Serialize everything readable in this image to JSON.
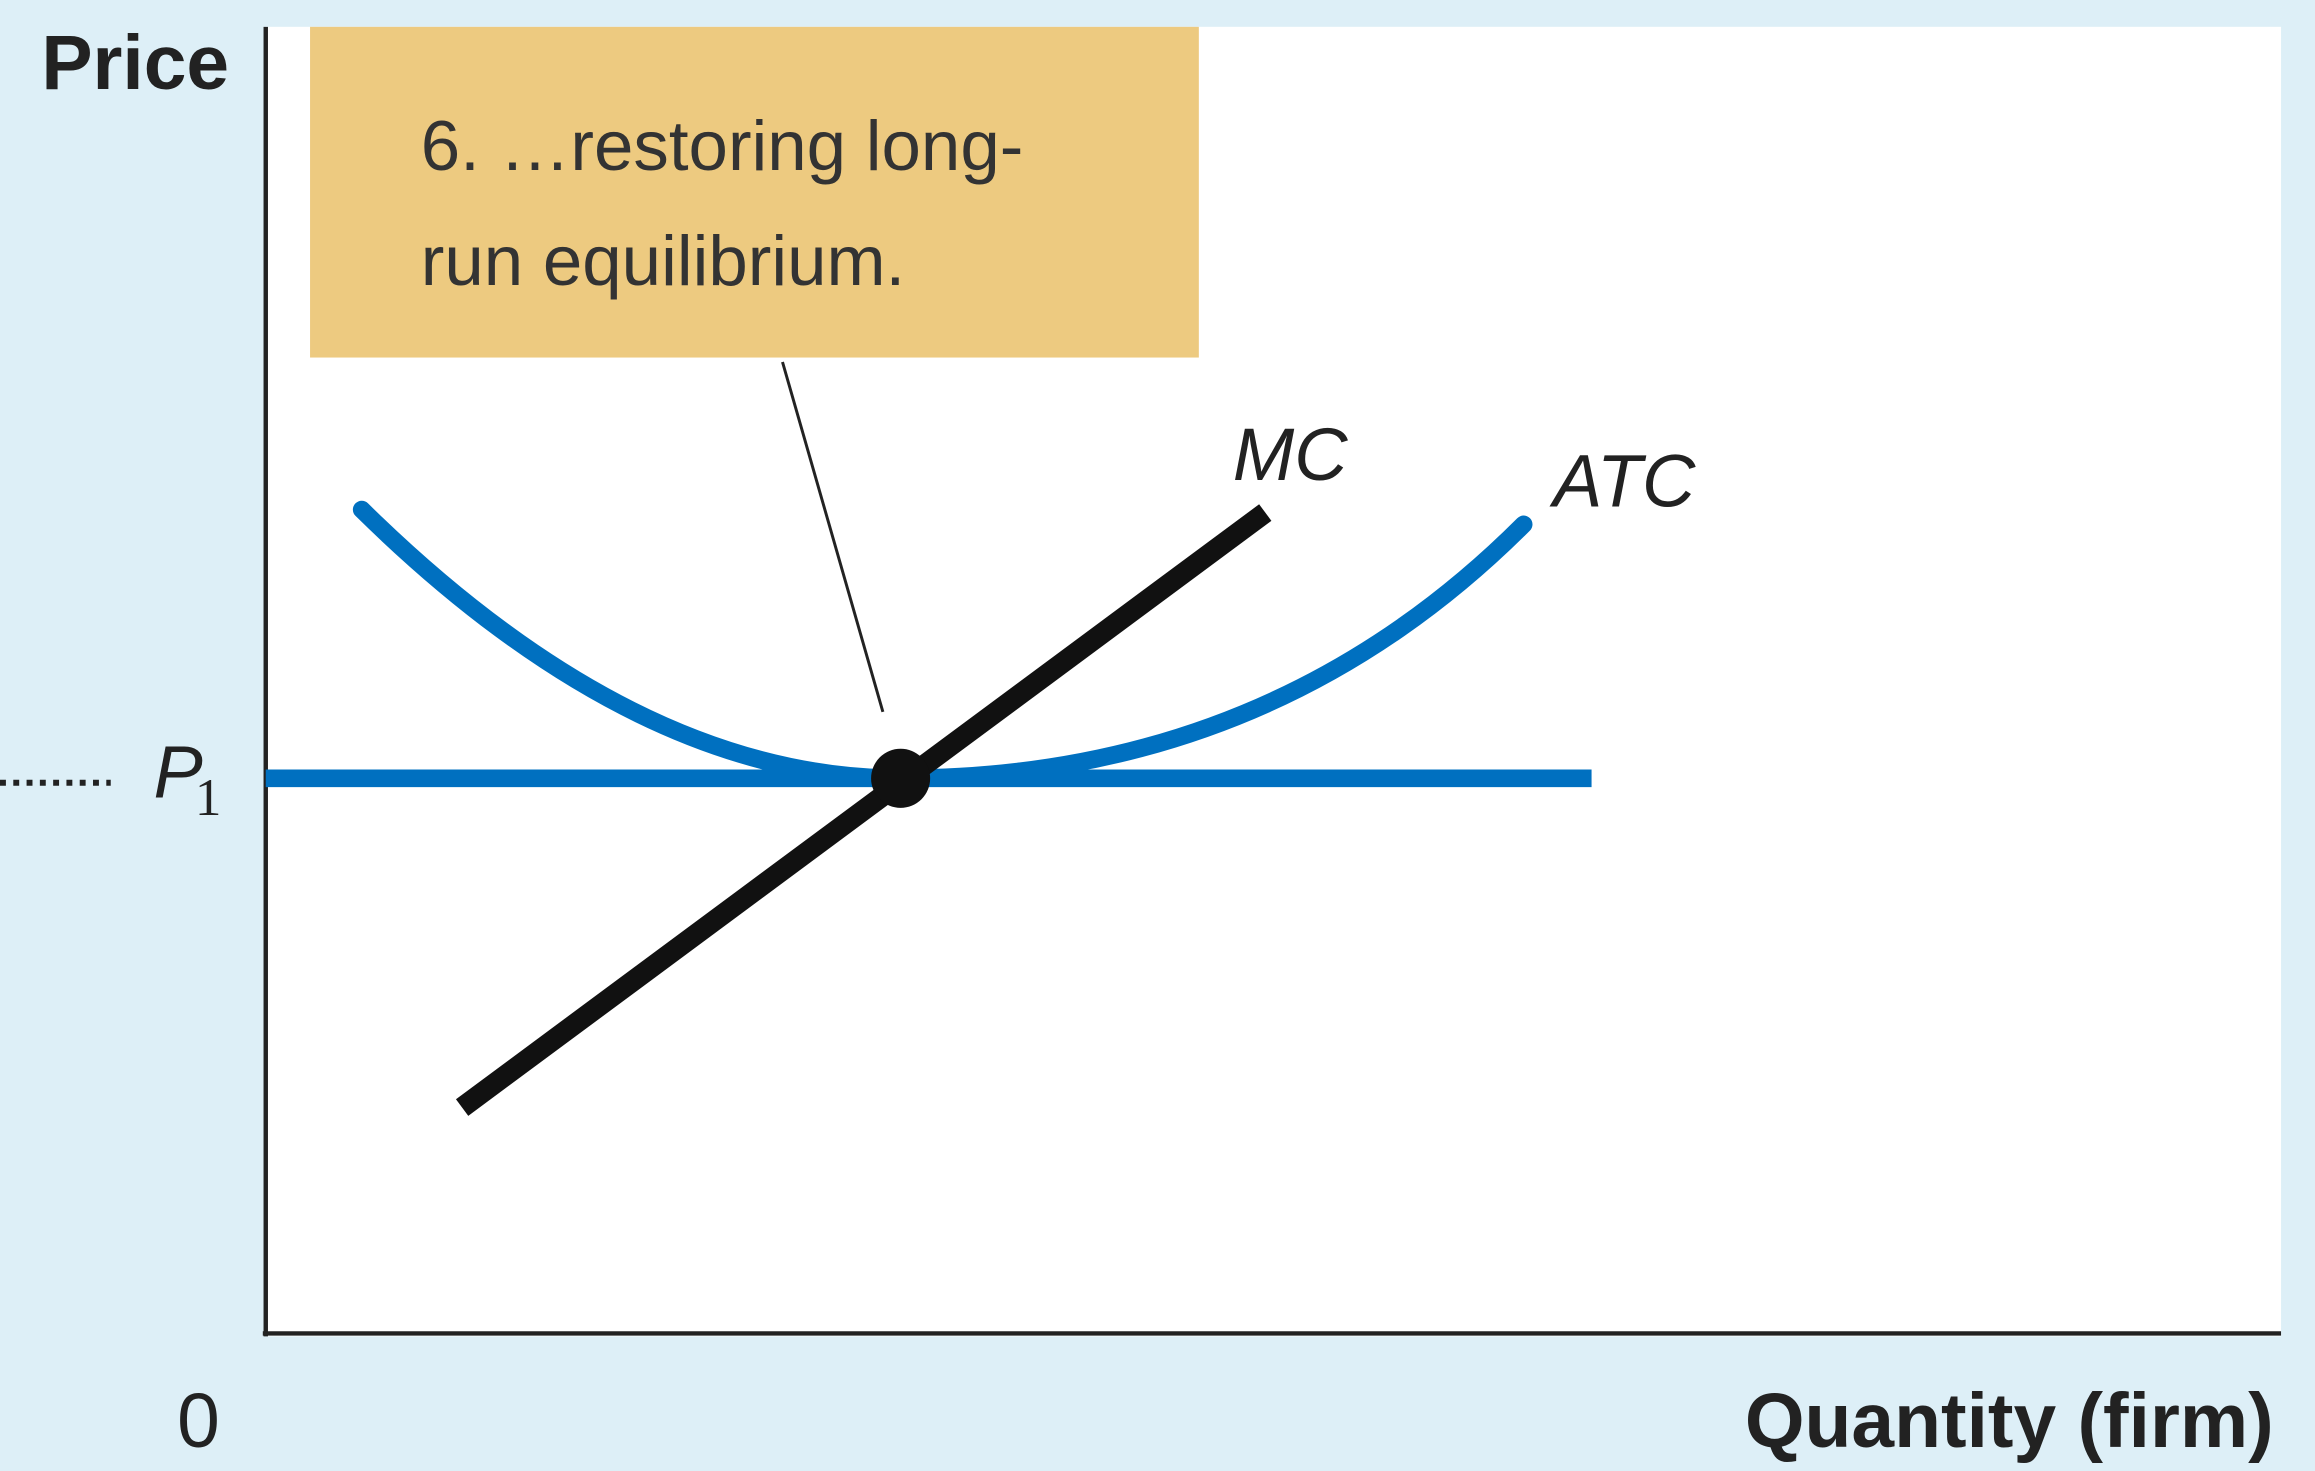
{
  "axes": {
    "y_label": "Price",
    "x_label": "Quantity (firm)",
    "origin": "0"
  },
  "price_label": {
    "letter": "P",
    "subscript": "1"
  },
  "curves": {
    "mc": "MC",
    "atc": "ATC"
  },
  "annotation": {
    "lines": [
      "6. …restoring long-",
      "run equilibrium."
    ]
  }
}
